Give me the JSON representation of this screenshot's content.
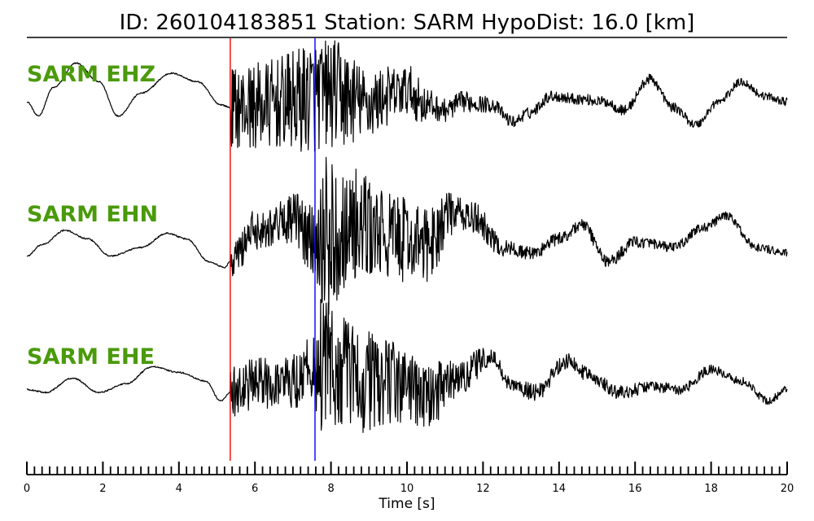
{
  "header": {
    "title": "ID: 260104183851    Station: SARM    HypoDist:     16.0 [km]"
  },
  "chart_data": {
    "type": "line",
    "title": "ID: 260104183851    Station: SARM    HypoDist:     16.0 [km]",
    "event_id": "260104183851",
    "station": "SARM",
    "hypodist_km": 16.0,
    "xlabel": "Time [s]",
    "ylabel": "",
    "xlim": [
      0,
      20
    ],
    "x_tick_labels": [
      "0",
      "2",
      "4",
      "6",
      "8",
      "10",
      "12",
      "14",
      "16",
      "18",
      "20"
    ],
    "major_tick_step": 2,
    "minor_tick_step": 0.2,
    "picks": [
      {
        "phase": "P",
        "time": 5.35,
        "color": "#ff0000"
      },
      {
        "phase": "S",
        "time": 7.58,
        "color": "#0000ff"
      }
    ],
    "label_color": "#4a9a0a",
    "trace_color": "#000000",
    "series": [
      {
        "name": "SARM EHZ",
        "points": [
          [
            0,
            0.1
          ],
          [
            0.3,
            -0.15
          ],
          [
            0.7,
            0.35
          ],
          [
            1.3,
            0.78
          ],
          [
            1.9,
            0.45
          ],
          [
            2.4,
            -0.15
          ],
          [
            3,
            0.25
          ],
          [
            3.8,
            0.6
          ],
          [
            4.5,
            0.45
          ],
          [
            5.1,
            0.05
          ],
          [
            5.35,
            0.0
          ]
        ],
        "coda": [
          [
            5.35,
            0.0
          ],
          [
            6,
            0.02
          ],
          [
            7,
            0.1
          ],
          [
            7.5,
            0.2
          ],
          [
            8,
            0.25
          ],
          [
            8.5,
            0.15
          ],
          [
            9,
            0.05
          ],
          [
            9.5,
            0.2
          ],
          [
            10,
            0.3
          ],
          [
            10.5,
            0.05
          ],
          [
            11,
            -0.05
          ],
          [
            11.5,
            0.1
          ],
          [
            12.2,
            0.05
          ],
          [
            12.8,
            -0.25
          ],
          [
            13.2,
            -0.1
          ],
          [
            13.8,
            0.2
          ],
          [
            14.5,
            0.15
          ],
          [
            15.2,
            0.1
          ],
          [
            15.7,
            -0.05
          ],
          [
            16.4,
            0.5
          ],
          [
            17,
            0.0
          ],
          [
            17.6,
            -0.3
          ],
          [
            18.2,
            0.1
          ],
          [
            18.8,
            0.45
          ],
          [
            19.4,
            0.2
          ],
          [
            20,
            0.1
          ]
        ],
        "noise": [
          [
            5.35,
            0.7
          ],
          [
            6.5,
            0.8
          ],
          [
            7.5,
            1.0
          ],
          [
            8.2,
            0.95
          ],
          [
            9,
            0.6
          ],
          [
            10,
            0.45
          ],
          [
            11,
            0.2
          ],
          [
            13,
            0.1
          ],
          [
            20,
            0.07
          ]
        ]
      },
      {
        "name": "SARM EHN",
        "points": [
          [
            0,
            -0.25
          ],
          [
            0.4,
            -0.05
          ],
          [
            1,
            0.2
          ],
          [
            1.6,
            0.05
          ],
          [
            2.2,
            -0.25
          ],
          [
            3,
            -0.1
          ],
          [
            3.7,
            0.15
          ],
          [
            4.2,
            0.05
          ],
          [
            4.8,
            -0.35
          ],
          [
            5.2,
            -0.45
          ],
          [
            5.35,
            -0.35
          ]
        ],
        "coda": [
          [
            5.35,
            -0.35
          ],
          [
            6,
            0.2
          ],
          [
            7,
            0.4
          ],
          [
            7.5,
            0.05
          ],
          [
            8,
            0.1
          ],
          [
            8.5,
            0.3
          ],
          [
            9.5,
            0.1
          ],
          [
            10.5,
            -0.05
          ],
          [
            11.2,
            0.5
          ],
          [
            11.8,
            0.4
          ],
          [
            12.5,
            -0.1
          ],
          [
            13.3,
            -0.2
          ],
          [
            14,
            0.05
          ],
          [
            14.6,
            0.3
          ],
          [
            15.3,
            -0.35
          ],
          [
            16,
            0.0
          ],
          [
            17,
            -0.1
          ],
          [
            17.8,
            0.25
          ],
          [
            18.4,
            0.45
          ],
          [
            19.2,
            -0.1
          ],
          [
            20,
            -0.2
          ]
        ],
        "noise": [
          [
            5.35,
            0.35
          ],
          [
            6.5,
            0.35
          ],
          [
            7.5,
            0.6
          ],
          [
            7.9,
            1.4
          ],
          [
            8.5,
            1.0
          ],
          [
            9.5,
            0.8
          ],
          [
            10.5,
            0.65
          ],
          [
            11.5,
            0.3
          ],
          [
            13,
            0.12
          ],
          [
            20,
            0.07
          ]
        ]
      },
      {
        "name": "SARM EHE",
        "points": [
          [
            0,
            -0.05
          ],
          [
            0.5,
            -0.1
          ],
          [
            1.2,
            0.15
          ],
          [
            1.9,
            -0.1
          ],
          [
            2.6,
            0.05
          ],
          [
            3.3,
            0.35
          ],
          [
            4,
            0.25
          ],
          [
            4.7,
            0.1
          ],
          [
            5.1,
            -0.25
          ],
          [
            5.35,
            -0.1
          ]
        ],
        "coda": [
          [
            5.35,
            -0.1
          ],
          [
            6,
            0.05
          ],
          [
            7,
            0.1
          ],
          [
            7.5,
            0.35
          ],
          [
            8,
            0.3
          ],
          [
            9,
            0.1
          ],
          [
            10,
            0.05
          ],
          [
            10.5,
            -0.2
          ],
          [
            11.2,
            0.1
          ],
          [
            12.2,
            0.5
          ],
          [
            12.8,
            0.0
          ],
          [
            13.4,
            -0.1
          ],
          [
            14.2,
            0.45
          ],
          [
            14.8,
            0.2
          ],
          [
            15.6,
            -0.1
          ],
          [
            16.4,
            0.0
          ],
          [
            17.2,
            -0.05
          ],
          [
            18,
            0.3
          ],
          [
            18.8,
            0.1
          ],
          [
            19.5,
            -0.25
          ],
          [
            20,
            -0.05
          ]
        ],
        "noise": [
          [
            5.35,
            0.45
          ],
          [
            6.5,
            0.45
          ],
          [
            7.5,
            0.6
          ],
          [
            7.8,
            1.3
          ],
          [
            8.6,
            1.0
          ],
          [
            9.5,
            0.75
          ],
          [
            10.5,
            0.6
          ],
          [
            11.5,
            0.3
          ],
          [
            12.5,
            0.15
          ],
          [
            20,
            0.07
          ]
        ]
      }
    ]
  }
}
